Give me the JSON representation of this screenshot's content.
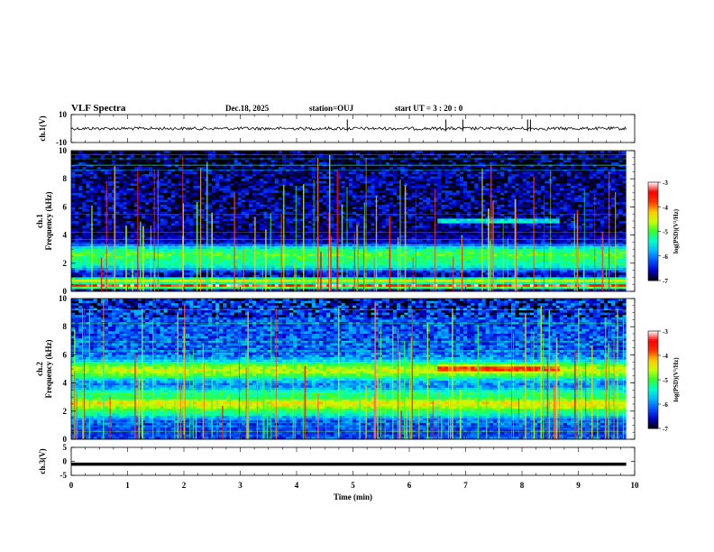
{
  "header": {
    "title": "VLF Spectra",
    "date": "Dec.18, 2025",
    "station": "station=OUJ",
    "start_ut": "start  UT =   3  : 20 : 0"
  },
  "chart_data": [
    {
      "type": "line",
      "name": "ch1-waveform",
      "ylabel": "ch.1(V)",
      "ylim": [
        -10,
        10
      ],
      "yticks": [
        10,
        -10
      ],
      "baseline": 0,
      "spikes_min": [
        4.9,
        6.65,
        6.95,
        8.1,
        8.15
      ],
      "xlim": [
        0,
        10
      ]
    },
    {
      "type": "heatmap",
      "name": "ch1-spectrogram",
      "ylabel": "ch.1 Frequency (kHz)",
      "ylim": [
        0,
        10
      ],
      "yticks": [
        0,
        2,
        4,
        6,
        8,
        10
      ],
      "data_end_min": 9.85,
      "bands_khz": [
        {
          "f": 0.4,
          "w": 0.18,
          "level": -3.3
        },
        {
          "f": 0.8,
          "w": 0.15,
          "level": -4.3
        },
        {
          "f": 1.9,
          "w": 0.4,
          "level": -5.6
        },
        {
          "f": 2.6,
          "w": 0.8,
          "level": -5.0
        },
        {
          "f": 3.6,
          "w": 0.3,
          "level": -6.6
        },
        {
          "f": 4.2,
          "w": 0.25,
          "level": -6.8
        },
        {
          "f": 5.0,
          "w": 0.15,
          "level": -5.2,
          "t0": 6.5,
          "t1": 8.7
        }
      ],
      "colorbar": {
        "label": "log(PSD)(V²/Hz)",
        "range": [
          -7,
          -3
        ],
        "ticks": [
          -3,
          -4,
          -5,
          -6,
          -7
        ]
      }
    },
    {
      "type": "heatmap",
      "name": "ch2-spectrogram",
      "ylabel": "ch.2 Frequency (kHz)",
      "ylim": [
        0,
        10
      ],
      "yticks": [
        0,
        2,
        4,
        6,
        8,
        10
      ],
      "data_end_min": 9.85,
      "bands_khz": [
        {
          "f": 0.5,
          "w": 0.3,
          "level": -6.3
        },
        {
          "f": 1.9,
          "w": 0.4,
          "level": -5.5
        },
        {
          "f": 2.6,
          "w": 0.6,
          "level": -4.3
        },
        {
          "f": 3.2,
          "w": 0.4,
          "level": -5.2
        },
        {
          "f": 4.9,
          "w": 0.7,
          "level": -4.6
        },
        {
          "f": 5.0,
          "w": 0.2,
          "level": -3.6,
          "t0": 6.5,
          "t1": 8.7
        }
      ],
      "colorbar": {
        "label": "log(PSD)(V²/Hz)",
        "range": [
          -7,
          -3
        ],
        "ticks": [
          -3,
          -4,
          -5,
          -6,
          -7
        ]
      }
    },
    {
      "type": "line",
      "name": "ch3-waveform",
      "ylabel": "ch.3(V)",
      "ylim": [
        -5,
        5
      ],
      "yticks": [
        5,
        0,
        -5
      ],
      "baseline": -1,
      "xlim": [
        0,
        10
      ]
    }
  ],
  "xaxis": {
    "label": "Time  (min)",
    "ticks": [
      "0",
      "1",
      "2",
      "3",
      "4",
      "5",
      "6",
      "7",
      "8",
      "9",
      "10"
    ],
    "range": [
      0,
      10
    ]
  },
  "colorbar_label": "log(PSD)(V²/Hz)",
  "colormap": [
    "#000000",
    "#0000c8",
    "#0050ff",
    "#00b4ff",
    "#00ffc8",
    "#32ff32",
    "#c8ff00",
    "#ffc800",
    "#ff3200",
    "#ff0000",
    "#ffffff"
  ]
}
